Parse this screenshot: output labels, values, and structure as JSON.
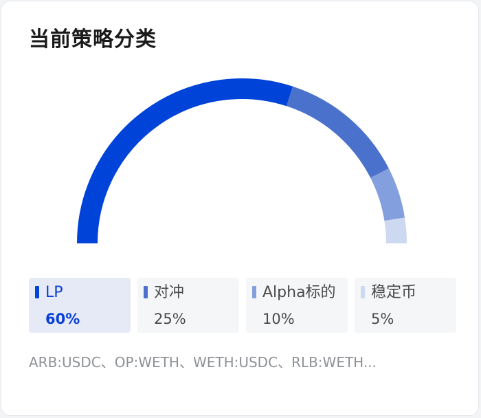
{
  "title": "当前策略分类",
  "colors": {
    "lp": "#0043d8",
    "hedge": "#4a72cc",
    "alpha": "#849fdd",
    "stable": "#cdd8f1"
  },
  "legend": [
    {
      "name": "LP",
      "value": "60%",
      "color": "#0043d8",
      "active": true
    },
    {
      "name": "对冲",
      "value": "25%",
      "color": "#4a72cc",
      "active": false
    },
    {
      "name": "Alpha标的",
      "value": "10%",
      "color": "#849fdd",
      "active": false
    },
    {
      "name": "稳定币",
      "value": "5%",
      "color": "#cdd8f1",
      "active": false
    }
  ],
  "footer": "ARB:USDC、OP:WETH、WETH:USDC、RLB:WETH...",
  "chart_data": {
    "type": "pie",
    "variant": "semicircle-donut",
    "categories": [
      "LP",
      "对冲",
      "Alpha标的",
      "稳定币"
    ],
    "values": [
      60,
      25,
      10,
      5
    ],
    "unit": "%",
    "colors": [
      "#0043d8",
      "#4a72cc",
      "#849fdd",
      "#cdd8f1"
    ],
    "title": "当前策略分类"
  }
}
